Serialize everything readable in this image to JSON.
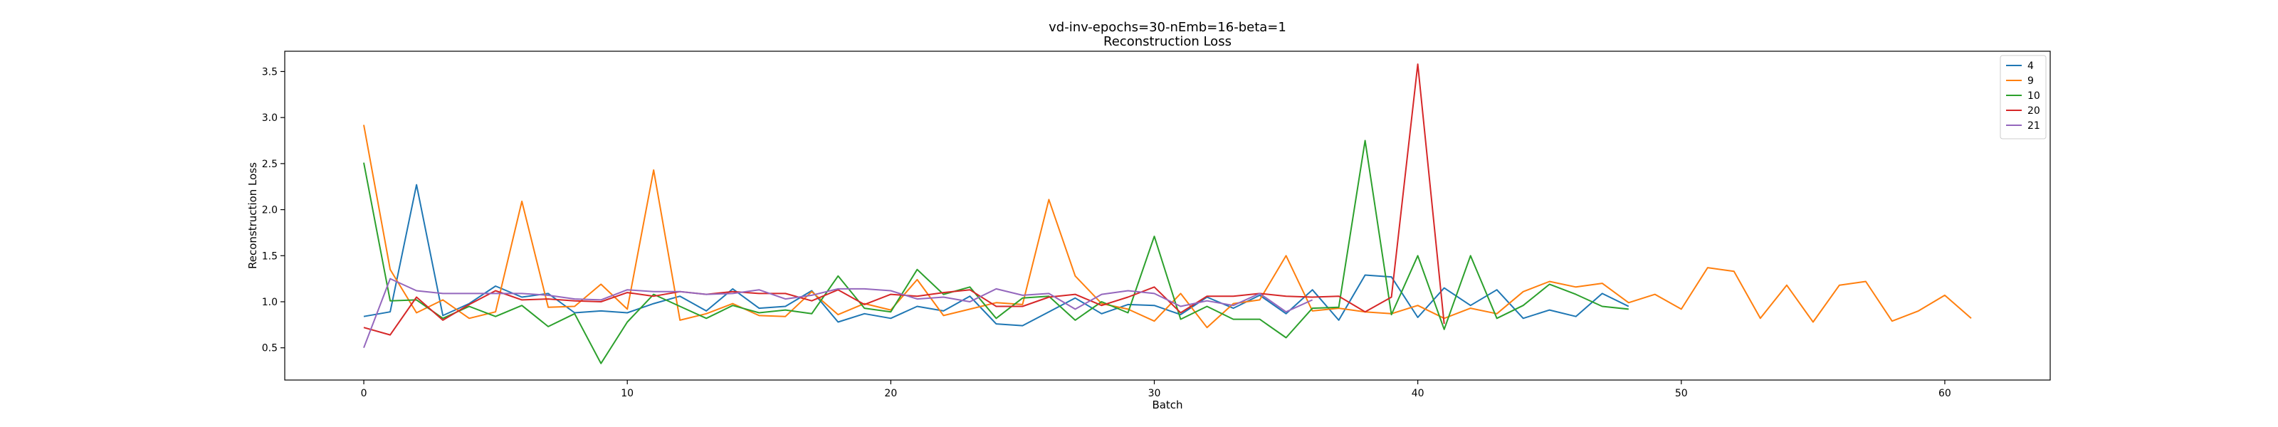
{
  "chart_data": {
    "type": "line",
    "title": "vd-inv-epochs=30-nEmb=16-beta=1",
    "subtitle": "Reconstruction Loss",
    "xlabel": "Batch",
    "ylabel": "Reconstruction Loss",
    "xlim": [
      -3,
      64
    ],
    "ylim": [
      0.15,
      3.72
    ],
    "xticks": [
      0,
      10,
      20,
      30,
      40,
      50,
      60
    ],
    "yticks": [
      0.5,
      1.0,
      1.5,
      2.0,
      2.5,
      3.0,
      3.5
    ],
    "ytick_labels": [
      "0.5",
      "1.0",
      "1.5",
      "2.0",
      "2.5",
      "3.0",
      "3.5"
    ],
    "grid": false,
    "legend_position": "top-right",
    "series": [
      {
        "name": "4",
        "color": "#1f77b4",
        "values": [
          0.84,
          0.89,
          2.27,
          0.85,
          0.98,
          1.17,
          1.05,
          1.09,
          0.88,
          0.9,
          0.88,
          0.98,
          1.06,
          0.9,
          1.14,
          0.93,
          0.95,
          1.12,
          0.78,
          0.87,
          0.82,
          0.95,
          0.9,
          1.06,
          0.76,
          0.74,
          0.89,
          1.04,
          0.87,
          0.97,
          0.96,
          0.86,
          1.05,
          0.93,
          1.07,
          0.87,
          1.13,
          0.8,
          1.29,
          1.27,
          0.83,
          1.15,
          0.96,
          1.13,
          0.82,
          0.91,
          0.84,
          1.09,
          0.95
        ]
      },
      {
        "name": "9",
        "color": "#ff7f0e",
        "values": [
          2.92,
          1.35,
          0.88,
          1.02,
          0.82,
          0.89,
          2.09,
          0.94,
          0.95,
          1.19,
          0.92,
          2.43,
          0.8,
          0.87,
          0.98,
          0.85,
          0.84,
          1.11,
          0.86,
          0.98,
          0.91,
          1.24,
          0.85,
          0.92,
          0.99,
          0.97,
          2.11,
          1.28,
          0.98,
          0.92,
          0.79,
          1.09,
          0.72,
          0.98,
          1.02,
          1.5,
          0.9,
          0.93,
          0.89,
          0.87,
          0.96,
          0.82,
          0.93,
          0.87,
          1.11,
          1.22,
          1.16,
          1.2,
          0.99,
          1.08,
          0.92,
          1.37,
          1.33,
          0.82,
          1.18,
          0.78,
          1.18,
          1.22,
          0.79,
          0.9,
          1.07,
          0.82
        ]
      },
      {
        "name": "10",
        "color": "#2ca02c",
        "values": [
          2.51,
          1.01,
          1.02,
          0.82,
          0.95,
          0.84,
          0.96,
          0.73,
          0.87,
          0.33,
          0.78,
          1.08,
          0.95,
          0.82,
          0.96,
          0.88,
          0.91,
          0.87,
          1.28,
          0.93,
          0.89,
          1.35,
          1.08,
          1.16,
          0.82,
          1.04,
          1.06,
          0.8,
          1.0,
          0.88,
          1.71,
          0.81,
          0.95,
          0.81,
          0.81,
          0.61,
          0.93,
          0.94,
          2.75,
          0.86,
          1.5,
          0.7,
          1.5,
          0.82,
          0.96,
          1.19,
          1.08,
          0.95,
          0.92
        ]
      },
      {
        "name": "20",
        "color": "#d62728",
        "values": [
          0.72,
          0.64,
          1.05,
          0.8,
          0.97,
          1.12,
          1.02,
          1.03,
          1.01,
          1.0,
          1.1,
          1.06,
          1.11,
          1.08,
          1.11,
          1.09,
          1.09,
          1.01,
          1.13,
          0.97,
          1.08,
          1.06,
          1.1,
          1.13,
          0.95,
          0.95,
          1.05,
          1.08,
          0.96,
          1.05,
          1.16,
          0.88,
          1.06,
          1.06,
          1.09,
          1.06,
          1.05,
          1.06,
          0.89,
          1.05,
          3.58,
          0.76
        ]
      },
      {
        "name": "21",
        "color": "#9467bd",
        "values": [
          0.5,
          1.25,
          1.12,
          1.09,
          1.09,
          1.09,
          1.09,
          1.07,
          1.03,
          1.02,
          1.13,
          1.11,
          1.11,
          1.08,
          1.09,
          1.13,
          1.03,
          1.07,
          1.14,
          1.14,
          1.12,
          1.03,
          1.05,
          1.0,
          1.14,
          1.07,
          1.09,
          0.92,
          1.08,
          1.12,
          1.09,
          0.95,
          1.01,
          0.96,
          1.09,
          0.89,
          1.02
        ]
      }
    ]
  }
}
